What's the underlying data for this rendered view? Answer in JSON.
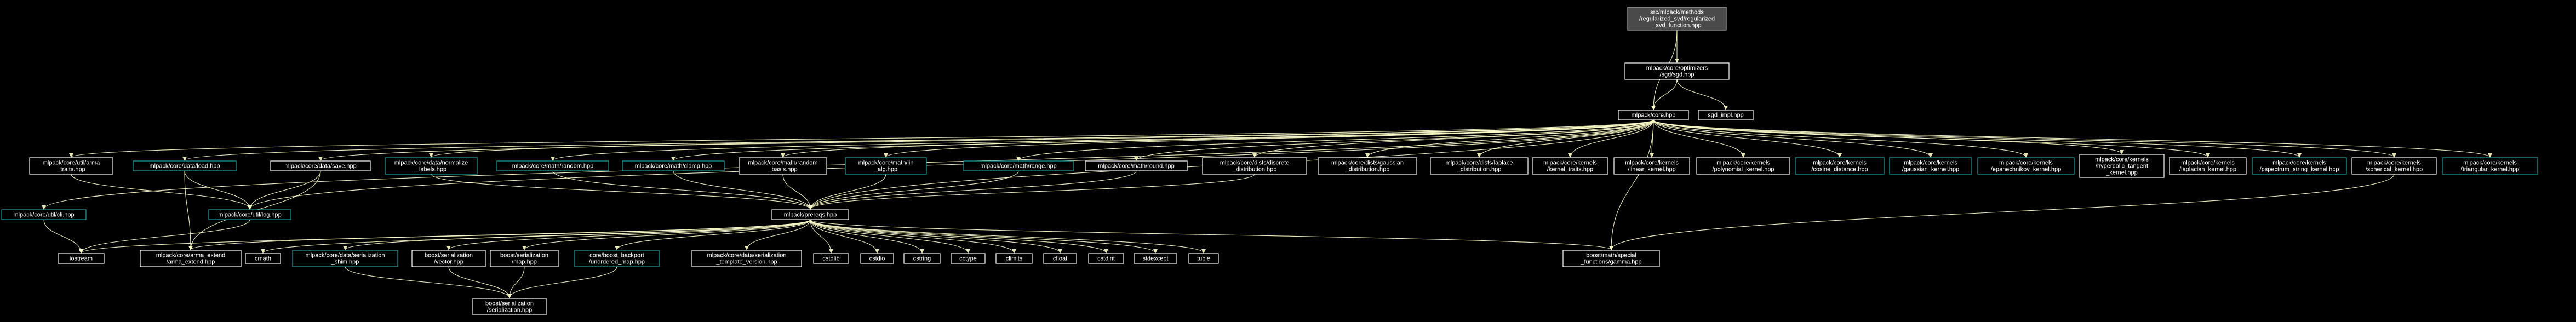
{
  "diagram": {
    "colors": {
      "background": "#000000",
      "edge": "#ffffcc",
      "node_fill": "#000000",
      "node_border_default": "#ffffff",
      "node_border_documented": "#1e9e9e",
      "root_fill": "#4a4a4a",
      "root_border": "#aaaaaa",
      "text": "#ffffff"
    },
    "nodes": [
      {
        "id": "root",
        "lines": [
          "src/mlpack/methods",
          "/regularized_svd/regularized",
          "_svd_function.hpp"
        ],
        "style": "root"
      },
      {
        "id": "sgd",
        "lines": [
          "mlpack/core/optimizers",
          "/sgd/sgd.hpp"
        ],
        "style": "default"
      },
      {
        "id": "core",
        "lines": [
          "mlpack/core.hpp"
        ],
        "style": "default"
      },
      {
        "id": "sgd_impl",
        "lines": [
          "sgd_impl.hpp"
        ],
        "style": "default"
      },
      {
        "id": "arma_traits",
        "lines": [
          "mlpack/core/util/arma",
          "_traits.hpp"
        ],
        "style": "default"
      },
      {
        "id": "data_load",
        "lines": [
          "mlpack/core/data/load.hpp"
        ],
        "style": "documented"
      },
      {
        "id": "data_save",
        "lines": [
          "mlpack/core/data/save.hpp"
        ],
        "style": "default"
      },
      {
        "id": "normalize_labels",
        "lines": [
          "mlpack/core/data/normalize",
          "_labels.hpp"
        ],
        "style": "documented"
      },
      {
        "id": "math_random",
        "lines": [
          "mlpack/core/math/random.hpp"
        ],
        "style": "documented"
      },
      {
        "id": "math_clamp",
        "lines": [
          "mlpack/core/math/clamp.hpp"
        ],
        "style": "documented"
      },
      {
        "id": "random_basis",
        "lines": [
          "mlpack/core/math/random",
          "_basis.hpp"
        ],
        "style": "default"
      },
      {
        "id": "math_lin_alg",
        "lines": [
          "mlpack/core/math/lin",
          "_alg.hpp"
        ],
        "style": "documented"
      },
      {
        "id": "math_range",
        "lines": [
          "mlpack/core/math/range.hpp"
        ],
        "style": "documented"
      },
      {
        "id": "math_round",
        "lines": [
          "mlpack/core/math/round.hpp"
        ],
        "style": "default"
      },
      {
        "id": "discrete",
        "lines": [
          "mlpack/core/dists/discrete",
          "_distribution.hpp"
        ],
        "style": "default"
      },
      {
        "id": "gaussian_dist",
        "lines": [
          "mlpack/core/dists/gaussian",
          "_distribution.hpp"
        ],
        "style": "default"
      },
      {
        "id": "laplace",
        "lines": [
          "mlpack/core/dists/laplace",
          "_distribution.hpp"
        ],
        "style": "default"
      },
      {
        "id": "kernel_traits",
        "lines": [
          "mlpack/core/kernels",
          "/kernel_traits.hpp"
        ],
        "style": "default"
      },
      {
        "id": "linear_kernel",
        "lines": [
          "mlpack/core/kernels",
          "/linear_kernel.hpp"
        ],
        "style": "default"
      },
      {
        "id": "polynomial_kernel",
        "lines": [
          "mlpack/core/kernels",
          "/polynomial_kernel.hpp"
        ],
        "style": "default"
      },
      {
        "id": "cosine_distance",
        "lines": [
          "mlpack/core/kernels",
          "/cosine_distance.hpp"
        ],
        "style": "documented"
      },
      {
        "id": "gaussian_kernel",
        "lines": [
          "mlpack/core/kernels",
          "/gaussian_kernel.hpp"
        ],
        "style": "documented"
      },
      {
        "id": "epanechnikov",
        "lines": [
          "mlpack/core/kernels",
          "/epanechnikov_kernel.hpp"
        ],
        "style": "documented"
      },
      {
        "id": "hyperbolic",
        "lines": [
          "mlpack/core/kernels",
          "/hyperbolic_tangent",
          "_kernel.hpp"
        ],
        "style": "default"
      },
      {
        "id": "laplacian_kernel",
        "lines": [
          "mlpack/core/kernels",
          "/laplacian_kernel.hpp"
        ],
        "style": "default"
      },
      {
        "id": "pspectrum",
        "lines": [
          "mlpack/core/kernels",
          "/pspectrum_string_kernel.hpp"
        ],
        "style": "documented"
      },
      {
        "id": "spherical",
        "lines": [
          "mlpack/core/kernels",
          "/spherical_kernel.hpp"
        ],
        "style": "default"
      },
      {
        "id": "triangular",
        "lines": [
          "mlpack/core/kernels",
          "/triangular_kernel.hpp"
        ],
        "style": "documented"
      },
      {
        "id": "util_cli",
        "lines": [
          "mlpack/core/util/cli.hpp"
        ],
        "style": "documented"
      },
      {
        "id": "util_log",
        "lines": [
          "mlpack/core/util/log.hpp"
        ],
        "style": "documented"
      },
      {
        "id": "prereqs",
        "lines": [
          "mlpack/prereqs.hpp"
        ],
        "style": "default"
      },
      {
        "id": "iostream",
        "lines": [
          "iostream"
        ],
        "style": "default"
      },
      {
        "id": "arma_extend",
        "lines": [
          "mlpack/core/arma_extend",
          "/arma_extend.hpp"
        ],
        "style": "default"
      },
      {
        "id": "cmath",
        "lines": [
          "cmath"
        ],
        "style": "default"
      },
      {
        "id": "ser_shim",
        "lines": [
          "mlpack/core/data/serialization",
          "_shim.hpp"
        ],
        "style": "documented"
      },
      {
        "id": "boost_vector",
        "lines": [
          "boost/serialization",
          "/vector.hpp"
        ],
        "style": "default"
      },
      {
        "id": "boost_map",
        "lines": [
          "boost/serialization",
          "/map.hpp"
        ],
        "style": "default"
      },
      {
        "id": "unordered_map",
        "lines": [
          "core/boost_backport",
          "/unordered_map.hpp"
        ],
        "style": "documented"
      },
      {
        "id": "template_version",
        "lines": [
          "mlpack/core/data/serialization",
          "_template_version.hpp"
        ],
        "style": "default"
      },
      {
        "id": "cstdlib",
        "lines": [
          "cstdlib"
        ],
        "style": "default"
      },
      {
        "id": "cstdio",
        "lines": [
          "cstdio"
        ],
        "style": "default"
      },
      {
        "id": "cstring",
        "lines": [
          "cstring"
        ],
        "style": "default"
      },
      {
        "id": "cctype",
        "lines": [
          "cctype"
        ],
        "style": "default"
      },
      {
        "id": "climits",
        "lines": [
          "climits"
        ],
        "style": "default"
      },
      {
        "id": "cfloat",
        "lines": [
          "cfloat"
        ],
        "style": "default"
      },
      {
        "id": "cstdint",
        "lines": [
          "cstdint"
        ],
        "style": "default"
      },
      {
        "id": "stdexcept",
        "lines": [
          "stdexcept"
        ],
        "style": "default"
      },
      {
        "id": "tuple",
        "lines": [
          "tuple"
        ],
        "style": "default"
      },
      {
        "id": "gamma",
        "lines": [
          "boost/math/special",
          "_functions/gamma.hpp"
        ],
        "style": "default"
      },
      {
        "id": "boost_serialization",
        "lines": [
          "boost/serialization",
          "/serialization.hpp"
        ],
        "style": "default"
      }
    ],
    "edges": [
      [
        "root",
        "sgd"
      ],
      [
        "root",
        "core"
      ],
      [
        "sgd",
        "core"
      ],
      [
        "sgd",
        "sgd_impl"
      ],
      [
        "core",
        "arma_traits"
      ],
      [
        "core",
        "data_load"
      ],
      [
        "core",
        "data_save"
      ],
      [
        "core",
        "normalize_labels"
      ],
      [
        "core",
        "math_random"
      ],
      [
        "core",
        "math_clamp"
      ],
      [
        "core",
        "random_basis"
      ],
      [
        "core",
        "math_lin_alg"
      ],
      [
        "core",
        "math_range"
      ],
      [
        "core",
        "math_round"
      ],
      [
        "core",
        "discrete"
      ],
      [
        "core",
        "gaussian_dist"
      ],
      [
        "core",
        "laplace"
      ],
      [
        "core",
        "kernel_traits"
      ],
      [
        "core",
        "linear_kernel"
      ],
      [
        "core",
        "polynomial_kernel"
      ],
      [
        "core",
        "cosine_distance"
      ],
      [
        "core",
        "gaussian_kernel"
      ],
      [
        "core",
        "epanechnikov"
      ],
      [
        "core",
        "hyperbolic"
      ],
      [
        "core",
        "laplacian_kernel"
      ],
      [
        "core",
        "pspectrum"
      ],
      [
        "core",
        "spherical"
      ],
      [
        "core",
        "triangular"
      ],
      [
        "core",
        "util_cli"
      ],
      [
        "core",
        "util_log"
      ],
      [
        "core",
        "prereqs"
      ],
      [
        "core",
        "gamma"
      ],
      [
        "data_load",
        "util_log"
      ],
      [
        "data_load",
        "arma_extend"
      ],
      [
        "data_save",
        "util_log"
      ],
      [
        "data_save",
        "arma_extend"
      ],
      [
        "normalize_labels",
        "prereqs"
      ],
      [
        "math_random",
        "prereqs"
      ],
      [
        "math_clamp",
        "prereqs"
      ],
      [
        "random_basis",
        "prereqs"
      ],
      [
        "math_lin_alg",
        "prereqs"
      ],
      [
        "math_range",
        "prereqs"
      ],
      [
        "arma_traits",
        "util_log"
      ],
      [
        "util_cli",
        "iostream"
      ],
      [
        "util_log",
        "iostream"
      ],
      [
        "prereqs",
        "iostream"
      ],
      [
        "prereqs",
        "arma_extend"
      ],
      [
        "prereqs",
        "cmath"
      ],
      [
        "prereqs",
        "ser_shim"
      ],
      [
        "prereqs",
        "boost_vector"
      ],
      [
        "prereqs",
        "boost_map"
      ],
      [
        "prereqs",
        "unordered_map"
      ],
      [
        "prereqs",
        "template_version"
      ],
      [
        "prereqs",
        "cstdlib"
      ],
      [
        "prereqs",
        "cstdio"
      ],
      [
        "prereqs",
        "cstring"
      ],
      [
        "prereqs",
        "cctype"
      ],
      [
        "prereqs",
        "climits"
      ],
      [
        "prereqs",
        "cfloat"
      ],
      [
        "prereqs",
        "cstdint"
      ],
      [
        "prereqs",
        "stdexcept"
      ],
      [
        "prereqs",
        "tuple"
      ],
      [
        "prereqs",
        "gamma"
      ],
      [
        "spherical",
        "gamma"
      ],
      [
        "discrete",
        "prereqs"
      ],
      [
        "math_round",
        "prereqs"
      ],
      [
        "ser_shim",
        "boost_serialization"
      ],
      [
        "boost_vector",
        "boost_serialization"
      ],
      [
        "boost_map",
        "boost_serialization"
      ],
      [
        "unordered_map",
        "boost_serialization"
      ]
    ]
  }
}
